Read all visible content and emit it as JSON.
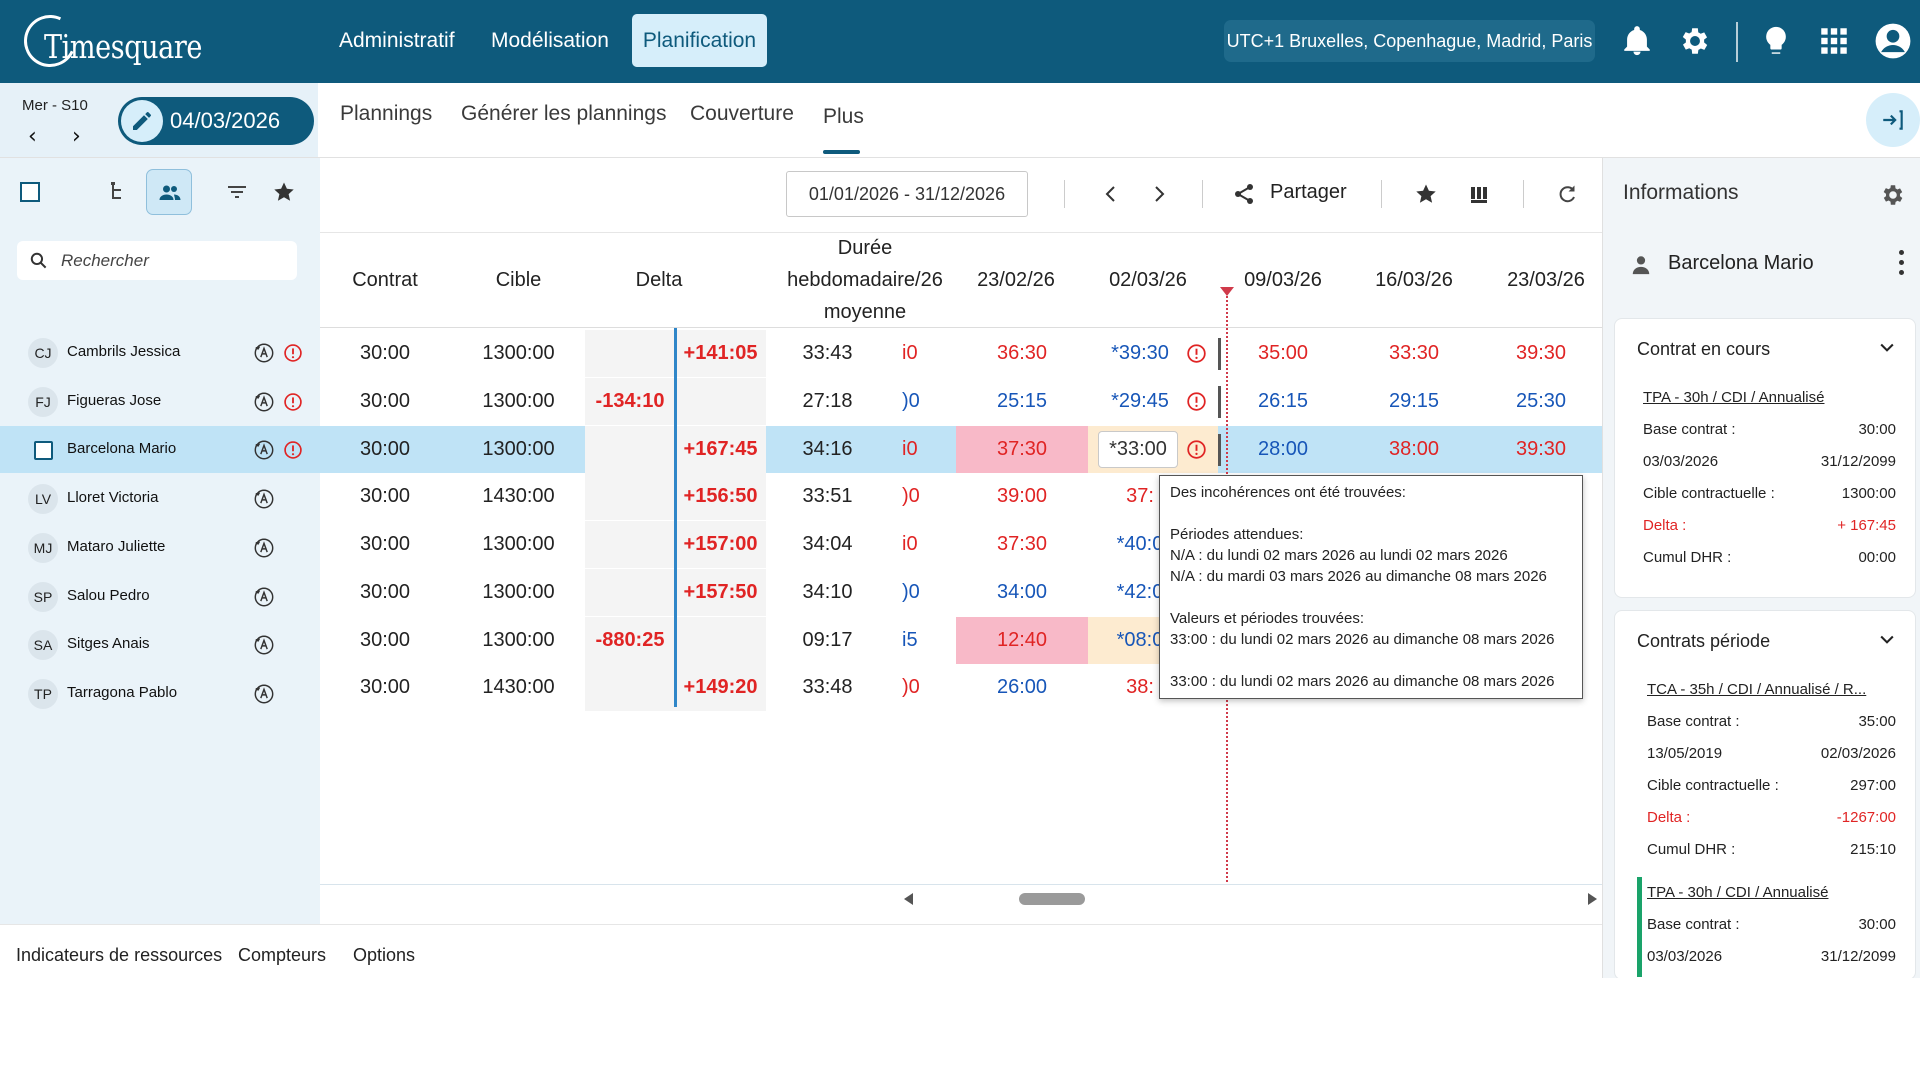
{
  "app": {
    "logo_text": "Timesquare",
    "nav": [
      "Administratif",
      "Modélisation",
      "Planification"
    ],
    "active_nav": "Planification",
    "timezone": "UTC+1 Bruxelles, Copenhague, Madrid, Paris",
    "icons": [
      "bell-icon",
      "gear-icon",
      "lightbulb-icon",
      "apps-grid-icon",
      "account-icon"
    ]
  },
  "date_bar": {
    "day_week": "Mer - S10",
    "date": "04/03/2026",
    "tabs": [
      "Plannings",
      "Générer les plannings",
      "Couverture",
      "Plus"
    ],
    "active_tab": "Plus"
  },
  "left_panel": {
    "search_placeholder": "Rechercher",
    "employees": [
      {
        "initials": "CJ",
        "name": "Cambrils Jessica",
        "has_error": true
      },
      {
        "initials": "FJ",
        "name": "Figueras Jose",
        "has_error": true
      },
      {
        "initials": "",
        "name": "Barcelona Mario",
        "has_error": true,
        "selected": true
      },
      {
        "initials": "LV",
        "name": "Lloret Victoria",
        "has_error": false
      },
      {
        "initials": "MJ",
        "name": "Mataro Juliette",
        "has_error": false
      },
      {
        "initials": "SP",
        "name": "Salou Pedro",
        "has_error": false
      },
      {
        "initials": "SA",
        "name": "Sitges Anais",
        "has_error": false
      },
      {
        "initials": "TP",
        "name": "Tarragona Pablo",
        "has_error": false
      }
    ]
  },
  "toolbar": {
    "period": "01/01/2026 - 31/12/2026",
    "share_label": "Partager"
  },
  "grid": {
    "headers": {
      "contrat": "Contrat",
      "cible": "Cible",
      "delta": "Delta",
      "duree_lines": [
        "Durée",
        "hebdomadaire/26",
        "moyenne"
      ],
      "w1": "23/02/26",
      "w2": "02/03/26",
      "w3": "09/03/26",
      "w4": "16/03/26",
      "w5": "23/03/26"
    },
    "rows": [
      {
        "contrat": "30:00",
        "cible": "1300:00",
        "delta_neg": "",
        "delta_pos": "+141:05",
        "duree": "33:43",
        "clip": "i0",
        "w1": "36:30",
        "w2": "*39:30",
        "w3": "35:00",
        "w4": "33:30",
        "w5": "39:30"
      },
      {
        "contrat": "30:00",
        "cible": "1300:00",
        "delta_neg": "-134:10",
        "delta_pos": "",
        "duree": "27:18",
        "clip": ")0",
        "w1": "25:15",
        "w2": "*29:45",
        "w3": "26:15",
        "w4": "29:15",
        "w5": "25:30"
      },
      {
        "contrat": "30:00",
        "cible": "1300:00",
        "delta_neg": "",
        "delta_pos": "+167:45",
        "duree": "34:16",
        "clip": "i0",
        "w1": "37:30",
        "w2": "*33:00",
        "w3": "28:00",
        "w4": "38:00",
        "w5": "39:30"
      },
      {
        "contrat": "30:00",
        "cible": "1430:00",
        "delta_neg": "",
        "delta_pos": "+156:50",
        "duree": "33:51",
        "clip": ")0",
        "w1": "39:00",
        "w2": "37:",
        "w3": "",
        "w4": "",
        "w5": ""
      },
      {
        "contrat": "30:00",
        "cible": "1300:00",
        "delta_neg": "",
        "delta_pos": "+157:00",
        "duree": "34:04",
        "clip": "i0",
        "w1": "37:30",
        "w2": "*40:0",
        "w3": "",
        "w4": "",
        "w5": ""
      },
      {
        "contrat": "30:00",
        "cible": "1300:00",
        "delta_neg": "",
        "delta_pos": "+157:50",
        "duree": "34:10",
        "clip": ")0",
        "w1": "34:00",
        "w2": "*42:0",
        "w3": "",
        "w4": "",
        "w5": ""
      },
      {
        "contrat": "30:00",
        "cible": "1300:00",
        "delta_neg": "-880:25",
        "delta_pos": "",
        "duree": "09:17",
        "clip": "i5",
        "w1": "12:40",
        "w2": "*08:0",
        "w3": "",
        "w4": "",
        "w5": ""
      },
      {
        "contrat": "30:00",
        "cible": "1430:00",
        "delta_neg": "",
        "delta_pos": "+149:20",
        "duree": "33:48",
        "clip": ")0",
        "w1": "26:00",
        "w2": "38:",
        "w3": "",
        "w4": "",
        "w5": ""
      }
    ]
  },
  "tooltip": {
    "title": "Des incohérences ont été trouvées:",
    "expected_title": "Périodes attendues:",
    "expected": [
      "N/A : du lundi 02 mars 2026 au lundi 02 mars 2026",
      "N/A : du mardi 03 mars 2026 au dimanche 08 mars 2026"
    ],
    "found_title": "Valeurs et périodes trouvées:",
    "found": [
      "33:00 : du lundi 02 mars 2026 au dimanche 08 mars 2026"
    ],
    "extra": "33:00 : du lundi 02 mars 2026 au dimanche 08 mars 2026"
  },
  "right_panel": {
    "title": "Informations",
    "employee": "Barcelona Mario",
    "contrat_en_cours": {
      "title": "Contrat en cours",
      "contract": "TPA - 30h / CDI / Annualisé",
      "base_label": "Base contrat :",
      "base": "30:00",
      "start": "03/03/2026",
      "end": "31/12/2099",
      "cible_label": "Cible contractuelle :",
      "cible": "1300:00",
      "delta_label": "Delta :",
      "delta": "+ 167:45",
      "cumul_label": "Cumul DHR :",
      "cumul": "00:00"
    },
    "contrats_periode": {
      "title": "Contrats période",
      "c1": {
        "contract": "TCA - 35h / CDI / Annualisé / R...",
        "base_label": "Base contrat :",
        "base": "35:00",
        "start": "13/05/2019",
        "end": "02/03/2026",
        "cible_label": "Cible contractuelle :",
        "cible": "297:00",
        "delta_label": "Delta :",
        "delta": "-1267:00",
        "cumul_label": "Cumul DHR :",
        "cumul": "215:10"
      },
      "c2": {
        "contract": "TPA - 30h / CDI / Annualisé",
        "base_label": "Base contrat :",
        "base": "30:00",
        "start": "03/03/2026",
        "end": "31/12/2099"
      }
    }
  },
  "bottom_tabs": [
    "Indicateurs de ressources",
    "Compteurs",
    "Options"
  ],
  "colors": {
    "brand": "#0e5a7c",
    "positive": "#1756b8",
    "negative": "#e02424",
    "selected_row": "#bfe3f6"
  }
}
